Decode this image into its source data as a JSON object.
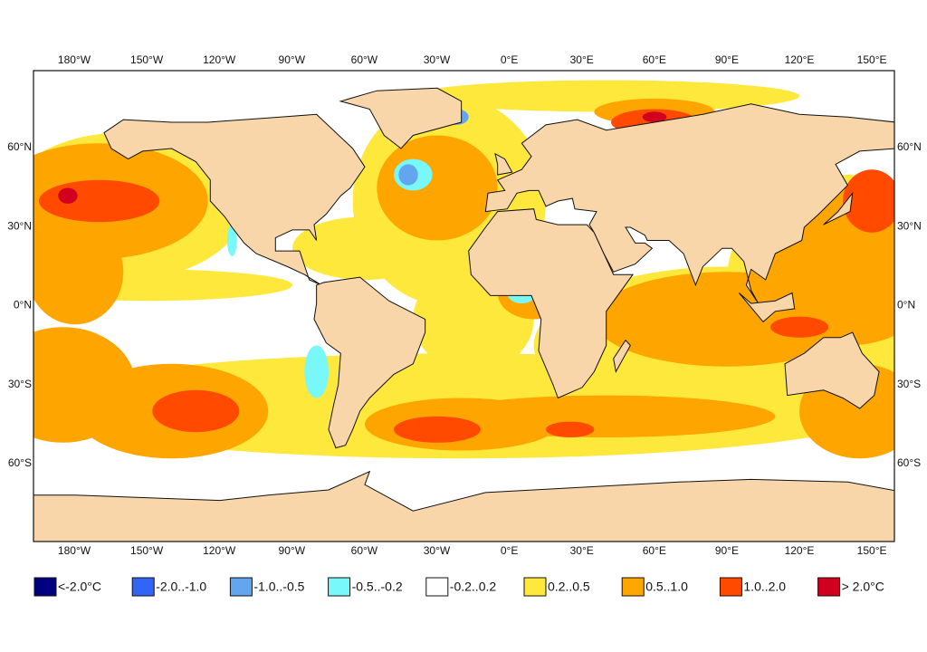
{
  "map": {
    "lon_labels": [
      "180°W",
      "150°W",
      "120°W",
      "90°W",
      "60°W",
      "30°W",
      "0°E",
      "30°E",
      "60°E",
      "90°E",
      "120°E",
      "150°E"
    ],
    "lat_labels": [
      "60°N",
      "30°N",
      "0°N",
      "30°S",
      "60°S"
    ],
    "legend": [
      {
        "label": "<-2.0°C",
        "color": "#000080"
      },
      {
        "label": "-2.0..-1.0",
        "color": "#3264f5"
      },
      {
        "label": "-1.0..-0.5",
        "color": "#64a5f0"
      },
      {
        "label": "-0.5..-0.2",
        "color": "#78f8f8"
      },
      {
        "label": "-0.2..0.2",
        "color": "#ffffff"
      },
      {
        "label": "0.2..0.5",
        "color": "#ffe83c"
      },
      {
        "label": "0.5..1.0",
        "color": "#ffa500"
      },
      {
        "label": "1.0..2.0",
        "color": "#ff4a00"
      },
      {
        "label": "> 2.0°C",
        "color": "#d0001e"
      }
    ]
  }
}
